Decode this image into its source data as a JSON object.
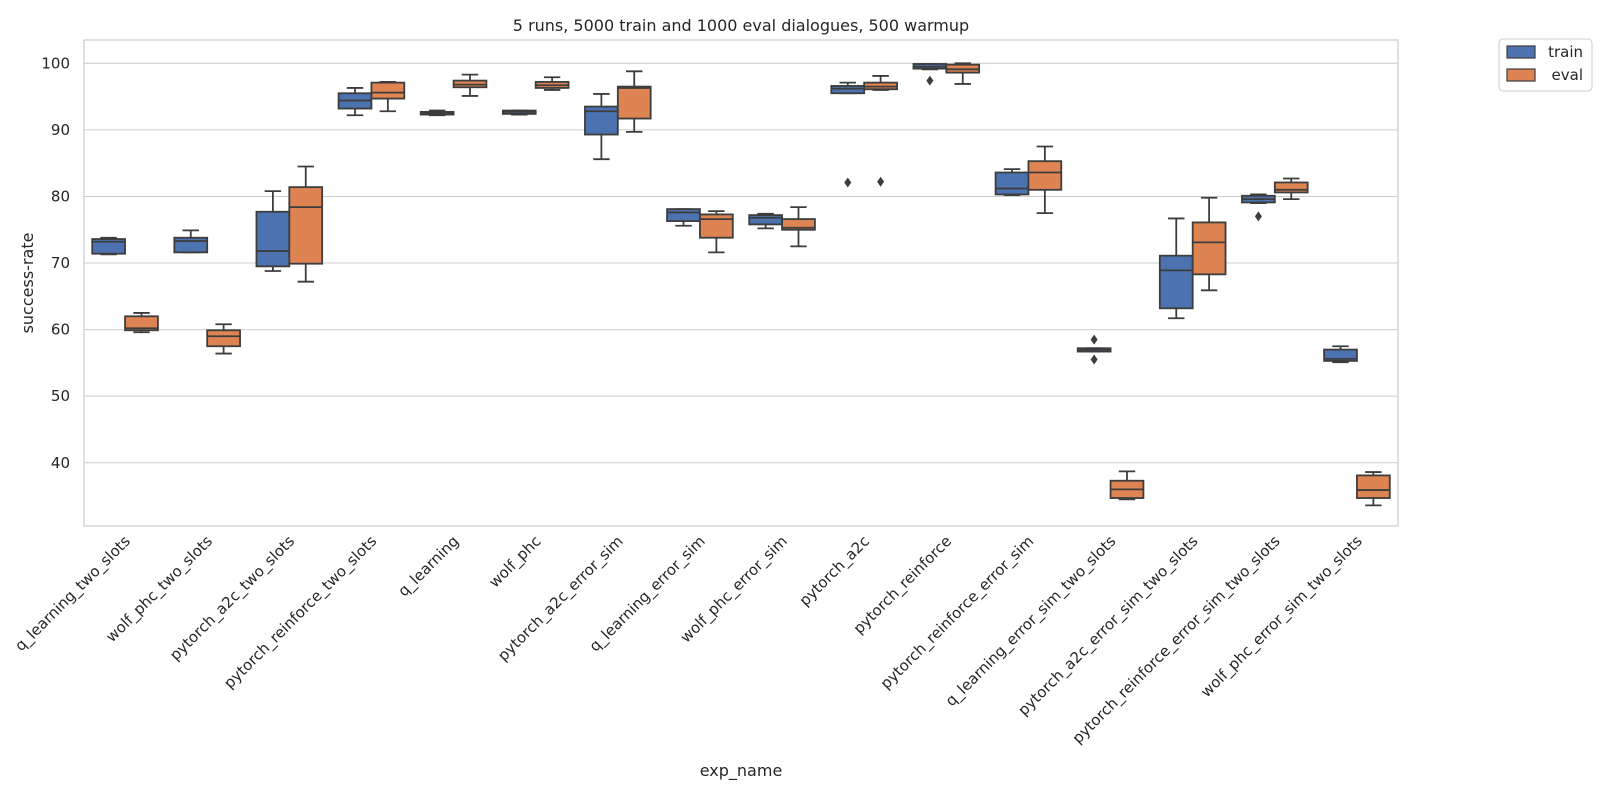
{
  "chart_data": {
    "type": "box",
    "title": "5 runs, 5000 train and 1000 eval dialogues, 500 warmup",
    "xlabel": "exp_name",
    "ylabel": "success-rate",
    "ylim": [
      30.5,
      103.5
    ],
    "yticks": [
      40,
      50,
      60,
      70,
      80,
      90,
      100
    ],
    "grid": "horizontal",
    "legend_position": "outside-top-right",
    "categories": [
      "q_learning_two_slots",
      "wolf_phc_two_slots",
      "pytorch_a2c_two_slots",
      "pytorch_reinforce_two_slots",
      "q_learning",
      "wolf_phc",
      "pytorch_a2c_error_sim",
      "q_learning_error_sim",
      "wolf_phc_error_sim",
      "pytorch_a2c",
      "pytorch_reinforce",
      "pytorch_reinforce_error_sim",
      "q_learning_error_sim_two_slots",
      "pytorch_a2c_error_sim_two_slots",
      "pytorch_reinforce_error_sim_two_slots",
      "wolf_phc_error_sim_two_slots"
    ],
    "series": [
      {
        "name": "train",
        "color": "#4c72b0",
        "boxes": [
          {
            "whislo": 71.3,
            "q1": 71.4,
            "med": 73.2,
            "q3": 73.6,
            "whishi": 73.8,
            "fliers": []
          },
          {
            "whislo": 71.6,
            "q1": 71.6,
            "med": 73.3,
            "q3": 73.8,
            "whishi": 74.9,
            "fliers": []
          },
          {
            "whislo": 68.8,
            "q1": 69.5,
            "med": 71.8,
            "q3": 77.7,
            "whishi": 80.8,
            "fliers": []
          },
          {
            "whislo": 92.2,
            "q1": 93.2,
            "med": 94.4,
            "q3": 95.5,
            "whishi": 96.3,
            "fliers": []
          },
          {
            "whislo": 92.2,
            "q1": 92.3,
            "med": 92.5,
            "q3": 92.7,
            "whishi": 92.9,
            "fliers": []
          },
          {
            "whislo": 92.3,
            "q1": 92.4,
            "med": 92.7,
            "q3": 92.9,
            "whishi": 92.9,
            "fliers": []
          },
          {
            "whislo": 85.6,
            "q1": 89.3,
            "med": 92.8,
            "q3": 93.5,
            "whishi": 95.4,
            "fliers": []
          },
          {
            "whislo": 75.6,
            "q1": 76.3,
            "med": 77.6,
            "q3": 78.1,
            "whishi": 78.1,
            "fliers": []
          },
          {
            "whislo": 75.2,
            "q1": 75.8,
            "med": 76.8,
            "q3": 77.2,
            "whishi": 77.4,
            "fliers": []
          },
          {
            "whislo": 95.5,
            "q1": 95.5,
            "med": 96.2,
            "q3": 96.6,
            "whishi": 97.1,
            "fliers": [
              82.1
            ]
          },
          {
            "whislo": 99.1,
            "q1": 99.2,
            "med": 99.5,
            "q3": 99.9,
            "whishi": 99.9,
            "fliers": [
              97.4
            ]
          },
          {
            "whislo": 80.2,
            "q1": 80.3,
            "med": 81.2,
            "q3": 83.6,
            "whishi": 84.1,
            "fliers": []
          },
          {
            "whislo": 56.7,
            "q1": 56.7,
            "med": 57.0,
            "q3": 57.2,
            "whishi": 57.2,
            "fliers": [
              58.5,
              55.5
            ]
          },
          {
            "whislo": 61.7,
            "q1": 63.2,
            "med": 68.9,
            "q3": 71.1,
            "whishi": 76.7,
            "fliers": []
          },
          {
            "whislo": 79.0,
            "q1": 79.1,
            "med": 79.6,
            "q3": 80.1,
            "whishi": 80.3,
            "fliers": [
              77.0
            ]
          },
          {
            "whislo": 55.1,
            "q1": 55.3,
            "med": 55.6,
            "q3": 57.0,
            "whishi": 57.5,
            "fliers": []
          }
        ]
      },
      {
        "name": "eval",
        "color": "#dd8452",
        "boxes": [
          {
            "whislo": 59.6,
            "q1": 59.9,
            "med": 60.2,
            "q3": 62.0,
            "whishi": 62.5,
            "fliers": []
          },
          {
            "whislo": 56.4,
            "q1": 57.5,
            "med": 59.0,
            "q3": 59.9,
            "whishi": 60.8,
            "fliers": []
          },
          {
            "whislo": 67.2,
            "q1": 69.9,
            "med": 78.4,
            "q3": 81.4,
            "whishi": 84.5,
            "fliers": []
          },
          {
            "whislo": 92.8,
            "q1": 94.7,
            "med": 95.6,
            "q3": 97.1,
            "whishi": 97.2,
            "fliers": []
          },
          {
            "whislo": 95.1,
            "q1": 96.4,
            "med": 96.8,
            "q3": 97.4,
            "whishi": 98.3,
            "fliers": []
          },
          {
            "whislo": 96.0,
            "q1": 96.3,
            "med": 96.7,
            "q3": 97.2,
            "whishi": 97.9,
            "fliers": []
          },
          {
            "whislo": 89.7,
            "q1": 91.7,
            "med": 96.3,
            "q3": 96.5,
            "whishi": 98.8,
            "fliers": []
          },
          {
            "whislo": 71.6,
            "q1": 73.8,
            "med": 76.6,
            "q3": 77.3,
            "whishi": 77.8,
            "fliers": []
          },
          {
            "whislo": 72.5,
            "q1": 75.0,
            "med": 75.3,
            "q3": 76.6,
            "whishi": 78.4,
            "fliers": []
          },
          {
            "whislo": 96.0,
            "q1": 96.1,
            "med": 96.5,
            "q3": 97.1,
            "whishi": 98.1,
            "fliers": [
              82.2
            ]
          },
          {
            "whislo": 96.9,
            "q1": 98.6,
            "med": 99.1,
            "q3": 99.8,
            "whishi": 100.0,
            "fliers": []
          },
          {
            "whislo": 77.5,
            "q1": 81.0,
            "med": 83.6,
            "q3": 85.3,
            "whishi": 87.5,
            "fliers": []
          },
          {
            "whislo": 34.5,
            "q1": 34.7,
            "med": 36.0,
            "q3": 37.3,
            "whishi": 38.7,
            "fliers": []
          },
          {
            "whislo": 65.9,
            "q1": 68.3,
            "med": 73.1,
            "q3": 76.1,
            "whishi": 79.8,
            "fliers": []
          },
          {
            "whislo": 79.6,
            "q1": 80.6,
            "med": 81.0,
            "q3": 82.1,
            "whishi": 82.7,
            "fliers": []
          },
          {
            "whislo": 33.6,
            "q1": 34.7,
            "med": 35.9,
            "q3": 38.1,
            "whishi": 38.6,
            "fliers": []
          }
        ]
      }
    ]
  }
}
